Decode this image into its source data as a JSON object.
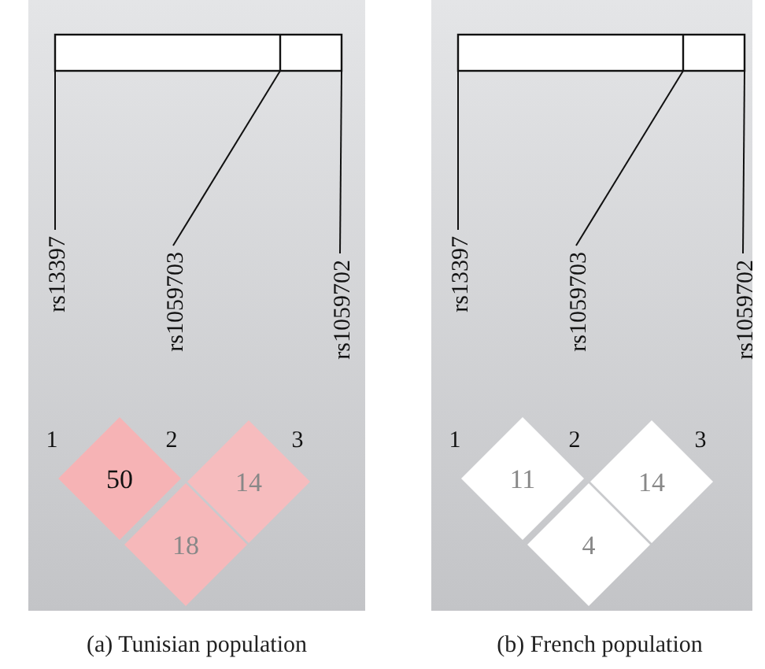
{
  "chart_data": [
    {
      "type": "other",
      "title": "(a)  Tunisian population",
      "annotations": [
        "rs13397",
        "rs1059703",
        "rs1059702",
        "1",
        "2",
        "3"
      ],
      "values": [
        50,
        14,
        18
      ],
      "data_labels": true,
      "colors": [
        "#f6b3b5",
        "#f6bcbe",
        "#f6b8ba"
      ]
    },
    {
      "type": "other",
      "title": "(b)  French population",
      "annotations": [
        "rs13397",
        "rs1059703",
        "rs1059702",
        "1",
        "2",
        "3"
      ],
      "values": [
        11,
        14,
        4
      ],
      "data_labels": true,
      "colors": [
        "#ffffff",
        "#ffffff",
        "#ffffff"
      ]
    }
  ]
}
